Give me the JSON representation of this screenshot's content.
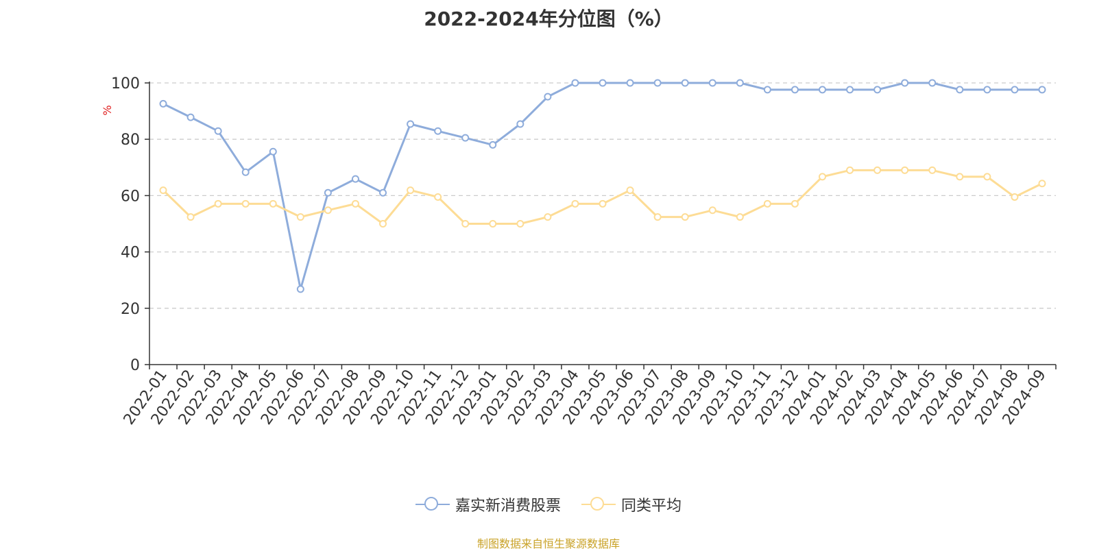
{
  "chart_data": {
    "type": "line",
    "title": "2022-2024年分位图（%）",
    "ylabel": "%",
    "ylim": [
      0,
      100
    ],
    "yticks": [
      0,
      20,
      40,
      60,
      80,
      100
    ],
    "grid": true,
    "legend_position": "bottom",
    "categories": [
      "2022-01",
      "2022-02",
      "2022-03",
      "2022-04",
      "2022-05",
      "2022-06",
      "2022-07",
      "2022-08",
      "2022-09",
      "2022-10",
      "2022-11",
      "2022-12",
      "2023-01",
      "2023-02",
      "2023-03",
      "2023-04",
      "2023-05",
      "2023-06",
      "2023-07",
      "2023-08",
      "2023-09",
      "2023-10",
      "2023-11",
      "2023-12",
      "2024-01",
      "2024-02",
      "2024-03",
      "2024-04",
      "2024-05",
      "2024-06",
      "2024-07",
      "2024-08",
      "2024-09"
    ],
    "series": [
      {
        "name": "嘉实新消费股票",
        "color": "#8eacdb",
        "values": [
          92.6,
          87.8,
          82.9,
          68.3,
          75.6,
          26.8,
          61.0,
          65.9,
          61.0,
          85.4,
          82.9,
          80.5,
          78.0,
          85.4,
          95.1,
          100,
          100,
          100,
          100,
          100,
          100,
          100,
          97.6,
          97.6,
          97.6,
          97.6,
          97.6,
          100,
          100,
          97.6,
          97.6,
          97.6,
          97.6
        ]
      },
      {
        "name": "同类平均",
        "color": "#fddc95",
        "values": [
          61.9,
          52.4,
          57.1,
          57.1,
          57.1,
          52.4,
          54.8,
          57.1,
          50.0,
          61.9,
          59.5,
          50.0,
          50.0,
          50.0,
          52.4,
          57.1,
          57.1,
          61.9,
          52.4,
          52.4,
          54.8,
          52.4,
          57.1,
          57.1,
          66.7,
          69.0,
          69.0,
          69.0,
          69.0,
          66.7,
          66.7,
          59.5,
          64.3
        ]
      }
    ]
  },
  "source_text": "制图数据来自恒生聚源数据库"
}
